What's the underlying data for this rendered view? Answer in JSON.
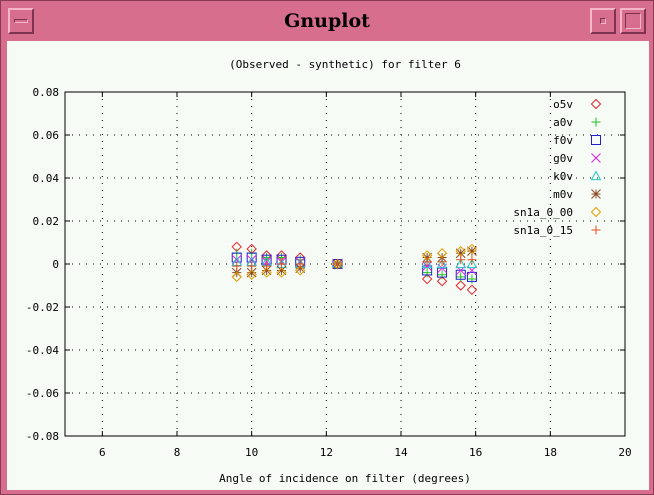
{
  "window": {
    "title": "Gnuplot"
  },
  "chart_data": {
    "type": "scatter",
    "title": "(Observed - synthetic) for filter 6",
    "xlabel": "Angle of incidence on filter (degrees)",
    "ylabel": "",
    "xlim": [
      5,
      20
    ],
    "ylim": [
      -0.08,
      0.08
    ],
    "xticks": [
      6,
      8,
      10,
      12,
      14,
      16,
      18,
      20
    ],
    "yticks": [
      -0.08,
      -0.06,
      -0.04,
      -0.02,
      0,
      0.02,
      0.04,
      0.06,
      0.08
    ],
    "xtick_labels": [
      "6",
      "8",
      "10",
      "12",
      "14",
      "16",
      "18",
      "20"
    ],
    "ytick_labels": [
      "-0.08",
      "-0.06",
      "-0.04",
      "-0.02",
      "0",
      "0.02",
      "0.04",
      "0.06",
      "0.08"
    ],
    "grid": true,
    "legend_position": "top-right",
    "x": [
      9.6,
      10.0,
      10.4,
      10.8,
      11.3,
      12.3,
      14.7,
      15.1,
      15.6,
      15.9
    ],
    "series": [
      {
        "name": "o5v",
        "marker": "diamond",
        "color": "#e8202a",
        "values": [
          0.008,
          0.007,
          0.004,
          0.004,
          0.003,
          0.0,
          -0.007,
          -0.008,
          -0.01,
          -0.012
        ]
      },
      {
        "name": "a0v",
        "marker": "plus",
        "color": "#20c020",
        "values": [
          0.005,
          0.005,
          0.003,
          0.003,
          0.002,
          0.0,
          -0.004,
          -0.005,
          -0.006,
          -0.007
        ]
      },
      {
        "name": "f0v",
        "marker": "square",
        "color": "#2020d0",
        "values": [
          0.003,
          0.003,
          0.002,
          0.002,
          0.001,
          0.0,
          -0.003,
          -0.004,
          -0.005,
          -0.006
        ]
      },
      {
        "name": "g0v",
        "marker": "cross",
        "color": "#e020e0",
        "values": [
          0.002,
          0.002,
          0.001,
          0.001,
          0.001,
          0.0,
          -0.001,
          -0.002,
          -0.003,
          -0.003
        ]
      },
      {
        "name": "k0v",
        "marker": "triangle",
        "color": "#20c8c8",
        "values": [
          0.001,
          0.001,
          0.001,
          0.0,
          0.0,
          0.0,
          0.0,
          0.0,
          0.0,
          0.0
        ]
      },
      {
        "name": "m0v",
        "marker": "star",
        "color": "#8a4a20",
        "values": [
          -0.004,
          -0.004,
          -0.003,
          -0.003,
          -0.002,
          0.0,
          0.003,
          0.003,
          0.005,
          0.006
        ]
      },
      {
        "name": "sn1a_0_00",
        "marker": "diamond",
        "color": "#e0a000",
        "values": [
          -0.006,
          -0.005,
          -0.004,
          -0.004,
          -0.003,
          0.0,
          0.004,
          0.005,
          0.006,
          0.007
        ]
      },
      {
        "name": "sn1a_0_15",
        "marker": "plus",
        "color": "#e05020",
        "values": [
          -0.001,
          -0.001,
          -0.001,
          0.0,
          0.0,
          0.0,
          0.001,
          0.001,
          0.002,
          0.002
        ]
      }
    ]
  }
}
